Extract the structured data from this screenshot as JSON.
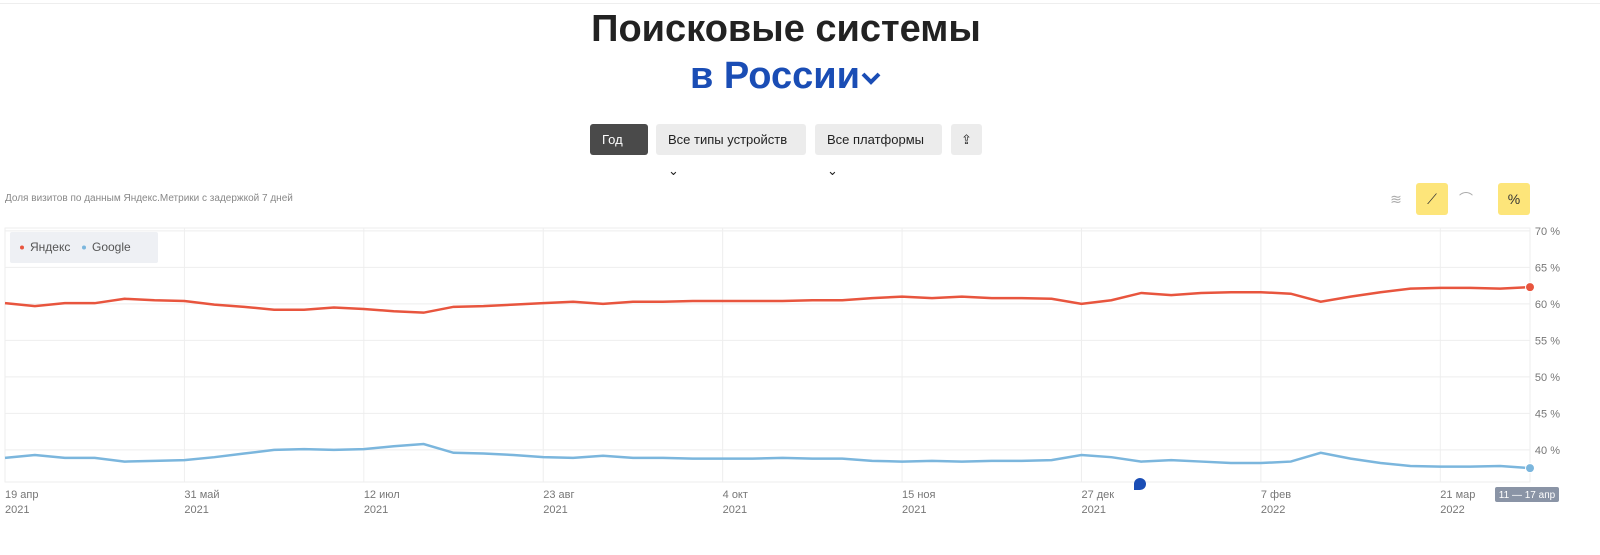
{
  "header": {
    "title": "Поисковые системы",
    "region": "в России"
  },
  "filters": [
    "Год",
    "Все типы устройств",
    "Все платформы"
  ],
  "note": "Доля визитов по данным Яндекс.Метрики с задержкой 7 дней",
  "chart_data": {
    "type": "line",
    "categories": [
      "19 апр",
      null,
      null,
      null,
      null,
      null,
      "31 май",
      null,
      null,
      null,
      null,
      null,
      "12 июл",
      null,
      null,
      null,
      null,
      null,
      "23 авг",
      null,
      null,
      null,
      null,
      null,
      "4 окт",
      null,
      null,
      null,
      null,
      null,
      "15 ноя",
      null,
      null,
      null,
      null,
      null,
      "27 дек",
      null,
      null,
      null,
      null,
      null,
      "7 фев",
      null,
      null,
      null,
      null,
      null,
      "21 мар",
      null,
      null,
      "11 — 17 апр"
    ],
    "category_years": [
      "2021",
      null,
      null,
      null,
      null,
      null,
      "2021",
      null,
      null,
      null,
      null,
      null,
      "2021",
      null,
      null,
      null,
      null,
      null,
      "2021",
      null,
      null,
      null,
      null,
      null,
      "2021",
      null,
      null,
      null,
      null,
      null,
      "2021",
      null,
      null,
      null,
      null,
      null,
      "2021",
      null,
      null,
      null,
      null,
      null,
      "2022",
      null,
      null,
      null,
      null,
      null,
      "2022",
      null,
      null,
      null
    ],
    "series": [
      {
        "name": "Яндекс",
        "color": "#e8553e",
        "values": [
          60.1,
          59.7,
          60.1,
          60.1,
          60.7,
          60.5,
          60.4,
          59.9,
          59.6,
          59.2,
          59.2,
          59.5,
          59.3,
          59.0,
          58.8,
          59.6,
          59.7,
          59.9,
          60.1,
          60.3,
          60.0,
          60.3,
          60.3,
          60.4,
          60.4,
          60.4,
          60.4,
          60.5,
          60.5,
          60.8,
          61.0,
          60.8,
          61.0,
          60.8,
          60.8,
          60.7,
          60.0,
          60.5,
          61.5,
          61.2,
          61.5,
          61.6,
          61.6,
          61.4,
          60.3,
          61.0,
          61.6,
          62.1,
          62.2,
          62.2,
          62.1,
          62.3
        ]
      },
      {
        "name": "Google",
        "color": "#7bb6dd",
        "values": [
          38.9,
          39.3,
          38.9,
          38.9,
          38.4,
          38.5,
          38.6,
          39.0,
          39.5,
          40.0,
          40.1,
          40.0,
          40.1,
          40.5,
          40.8,
          39.6,
          39.5,
          39.3,
          39.0,
          38.9,
          39.2,
          38.9,
          38.9,
          38.8,
          38.8,
          38.8,
          38.9,
          38.8,
          38.8,
          38.5,
          38.4,
          38.5,
          38.4,
          38.5,
          38.5,
          38.6,
          39.3,
          39.0,
          38.4,
          38.6,
          38.4,
          38.2,
          38.2,
          38.4,
          39.6,
          38.8,
          38.2,
          37.8,
          37.7,
          37.7,
          37.8,
          37.5
        ]
      }
    ],
    "ylim": [
      35.6,
      70.4
    ],
    "yticks": [
      {
        "value": 40,
        "label": "40 %"
      },
      {
        "value": 45,
        "label": "45 %"
      },
      {
        "value": 50,
        "label": "50 %"
      },
      {
        "value": 55,
        "label": "55 %"
      },
      {
        "value": 60,
        "label": "60 %"
      },
      {
        "value": 65,
        "label": "65 %"
      },
      {
        "value": 70,
        "label": "70 %"
      }
    ],
    "grid": true,
    "legend": "top-left"
  }
}
